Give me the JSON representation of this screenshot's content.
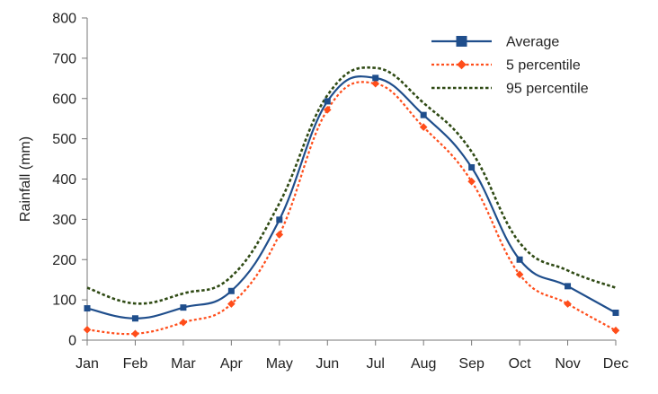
{
  "chart_data": {
    "type": "line",
    "title": "",
    "xlabel": "",
    "ylabel": "Rainfall (mm)",
    "ylim": [
      0,
      800
    ],
    "yticks": [
      0,
      100,
      200,
      300,
      400,
      500,
      600,
      700,
      800
    ],
    "categories": [
      "Jan",
      "Feb",
      "Mar",
      "Apr",
      "May",
      "Jun",
      "Jul",
      "Aug",
      "Sep",
      "Oct",
      "Nov",
      "Dec"
    ],
    "grid": false,
    "legend": "top-right",
    "series": [
      {
        "name": "Average",
        "values": [
          79,
          54,
          81,
          122,
          299,
          593,
          651,
          559,
          429,
          200,
          134,
          68
        ],
        "color": "#1f4e8c",
        "style": "solid",
        "marker": "square"
      },
      {
        "name": "5 percentile",
        "values": [
          26,
          16,
          44,
          90,
          262,
          572,
          637,
          529,
          394,
          163,
          90,
          24
        ],
        "color": "#ff4d1a",
        "style": "dotted",
        "marker": "diamond"
      },
      {
        "name": "95 percentile",
        "values": [
          130,
          91,
          116,
          158,
          340,
          608,
          676,
          589,
          468,
          242,
          173,
          130
        ],
        "color": "#2f4a14",
        "style": "dotted",
        "marker": "none"
      }
    ]
  }
}
